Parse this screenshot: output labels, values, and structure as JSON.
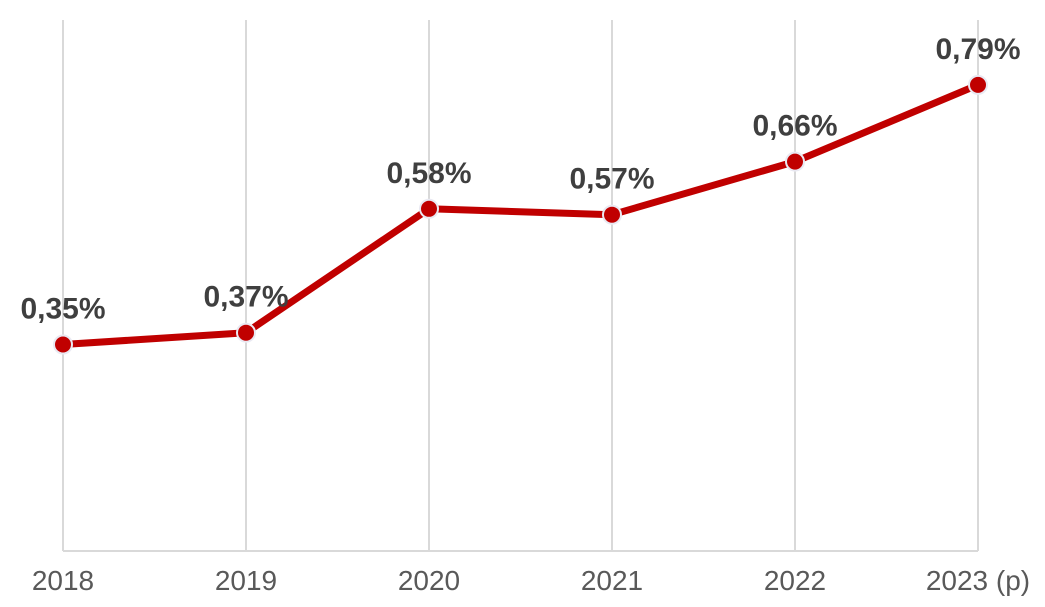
{
  "chart_data": {
    "type": "line",
    "categories": [
      "2018",
      "2019",
      "2020",
      "2021",
      "2022",
      "2023 (p)"
    ],
    "values": [
      0.35,
      0.37,
      0.58,
      0.57,
      0.66,
      0.79
    ],
    "data_labels": [
      "0,35%",
      "0,37%",
      "0,58%",
      "0,57%",
      "0,66%",
      "0,79%"
    ],
    "series_name": "share-percentage",
    "title": "",
    "xlabel": "",
    "ylabel": "",
    "ylim": [
      0,
      0.9
    ],
    "grid": "vertical-only",
    "legend_position": "none",
    "colors": {
      "line": "#C00000",
      "marker_fill": "#C00000",
      "marker_outline": "#E9E9F2",
      "data_label": "#3F3F3F",
      "axis_tick_label": "#595959",
      "gridline": "#D9D9D9",
      "axis_line": "#D9D9D9",
      "background": "#FFFFFF"
    },
    "style": {
      "line_width": 7,
      "marker_radius": 9,
      "marker_outline_width": 2,
      "data_label_font_size": 30,
      "tick_label_font_size": 28
    }
  }
}
